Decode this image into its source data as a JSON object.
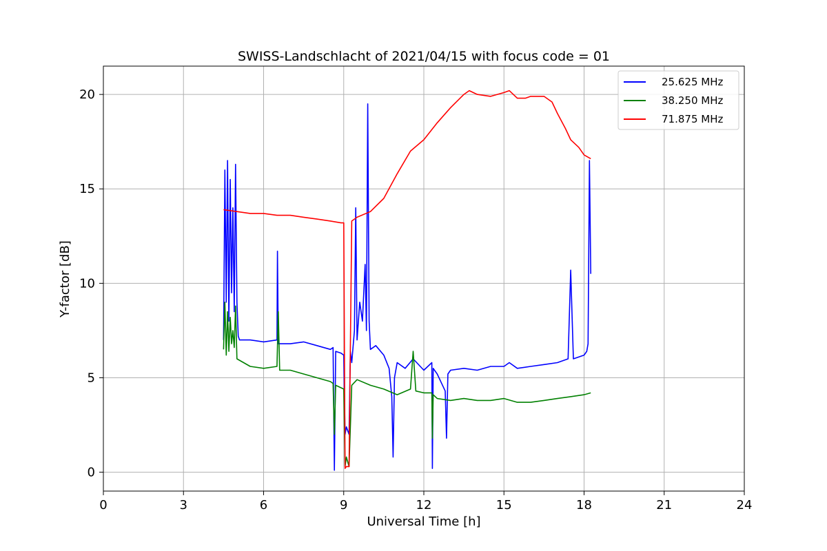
{
  "chart_data": {
    "type": "line",
    "title": "SWISS-Landschlacht of 2021/04/15 with focus code = 01",
    "xlabel": "Universal Time [h]",
    "ylabel": "Y-factor [dB]",
    "xlim": [
      0,
      24
    ],
    "ylim": [
      -1,
      21.5
    ],
    "xticks": [
      0,
      3,
      6,
      9,
      12,
      15,
      18,
      21,
      24
    ],
    "yticks": [
      0,
      5,
      10,
      15,
      20
    ],
    "grid": true,
    "legend_position": "top-right",
    "series": [
      {
        "name": "25.625 MHz",
        "legend_label": "25.625 MHz",
        "color": "#0000ff",
        "x": [
          4.5,
          4.55,
          4.6,
          4.65,
          4.7,
          4.75,
          4.8,
          4.85,
          4.9,
          4.95,
          5.0,
          5.05,
          5.1,
          5.5,
          6.0,
          6.5,
          6.52,
          6.55,
          7.0,
          7.5,
          8.0,
          8.5,
          8.6,
          8.65,
          8.7,
          8.9,
          9.0,
          9.05,
          9.1,
          9.2,
          9.25,
          9.3,
          9.4,
          9.45,
          9.5,
          9.6,
          9.7,
          9.8,
          9.85,
          9.9,
          9.95,
          10.0,
          10.2,
          10.5,
          10.7,
          10.8,
          10.85,
          10.9,
          11.0,
          11.3,
          11.6,
          12.0,
          12.3,
          12.32,
          12.35,
          12.5,
          12.8,
          12.85,
          12.9,
          13.0,
          13.5,
          14.0,
          14.5,
          15.0,
          15.2,
          15.5,
          16.0,
          16.5,
          17.0,
          17.4,
          17.5,
          17.6,
          18.0,
          18.1,
          18.15,
          18.2,
          18.25
        ],
        "y": [
          7.0,
          16.0,
          9.0,
          16.5,
          8.0,
          15.5,
          9.5,
          14.0,
          8.5,
          16.3,
          9.0,
          7.2,
          7.0,
          7.0,
          6.9,
          7.0,
          11.7,
          6.8,
          6.8,
          6.9,
          6.7,
          6.5,
          6.6,
          0.1,
          6.4,
          6.3,
          6.2,
          2.0,
          2.4,
          2.0,
          6.4,
          5.8,
          7.5,
          14.0,
          7.0,
          9.0,
          8.0,
          11.0,
          7.5,
          19.5,
          8.0,
          6.5,
          6.7,
          6.2,
          5.5,
          4.0,
          0.8,
          5.0,
          5.8,
          5.5,
          6.0,
          5.4,
          5.8,
          0.2,
          5.5,
          5.2,
          4.3,
          1.8,
          5.2,
          5.4,
          5.5,
          5.4,
          5.6,
          5.6,
          5.8,
          5.5,
          5.6,
          5.7,
          5.8,
          6.0,
          10.7,
          6.0,
          6.2,
          6.4,
          6.8,
          16.5,
          10.5
        ]
      },
      {
        "name": "38.250 MHz",
        "legend_label": "38.250 MHz",
        "color": "#008000",
        "x": [
          4.5,
          4.55,
          4.6,
          4.65,
          4.7,
          4.75,
          4.8,
          4.85,
          4.9,
          4.95,
          5.0,
          5.5,
          6.0,
          6.5,
          6.55,
          6.6,
          7.0,
          7.5,
          8.0,
          8.5,
          8.6,
          8.65,
          8.7,
          9.0,
          9.05,
          9.1,
          9.2,
          9.3,
          9.5,
          10.0,
          10.5,
          11.0,
          11.5,
          11.6,
          11.7,
          12.0,
          12.3,
          12.32,
          12.35,
          12.5,
          13.0,
          13.5,
          14.0,
          14.5,
          15.0,
          15.5,
          16.0,
          16.5,
          17.0,
          17.5,
          18.0,
          18.25
        ],
        "y": [
          6.5,
          9.0,
          6.2,
          8.5,
          6.4,
          8.2,
          6.8,
          7.5,
          6.6,
          8.8,
          6.0,
          5.6,
          5.5,
          5.6,
          8.5,
          5.4,
          5.4,
          5.2,
          5.0,
          4.8,
          4.7,
          2.0,
          4.6,
          4.4,
          0.3,
          0.8,
          0.3,
          4.6,
          4.9,
          4.6,
          4.4,
          4.1,
          4.4,
          6.4,
          4.3,
          4.2,
          4.2,
          1.8,
          4.1,
          3.9,
          3.8,
          3.9,
          3.8,
          3.8,
          3.9,
          3.7,
          3.7,
          3.8,
          3.9,
          4.0,
          4.1,
          4.2
        ]
      },
      {
        "name": "71.875 MHz",
        "legend_label": "71.875 MHz",
        "color": "#ff0000",
        "x": [
          4.5,
          5.0,
          5.5,
          6.0,
          6.5,
          7.0,
          7.5,
          8.0,
          8.5,
          8.9,
          9.0,
          9.05,
          9.1,
          9.2,
          9.3,
          9.5,
          10.0,
          10.5,
          11.0,
          11.5,
          12.0,
          12.5,
          13.0,
          13.5,
          13.7,
          14.0,
          14.5,
          15.0,
          15.2,
          15.5,
          15.8,
          16.0,
          16.5,
          16.8,
          17.0,
          17.3,
          17.5,
          17.8,
          18.0,
          18.25
        ],
        "y": [
          13.9,
          13.8,
          13.7,
          13.7,
          13.6,
          13.6,
          13.5,
          13.4,
          13.3,
          13.2,
          13.2,
          0.2,
          0.3,
          0.3,
          13.3,
          13.5,
          13.8,
          14.5,
          15.8,
          17.0,
          17.6,
          18.5,
          19.3,
          20.0,
          20.2,
          20.0,
          19.9,
          20.1,
          20.2,
          19.8,
          19.8,
          19.9,
          19.9,
          19.6,
          19.0,
          18.2,
          17.6,
          17.2,
          16.8,
          16.6
        ]
      }
    ]
  }
}
